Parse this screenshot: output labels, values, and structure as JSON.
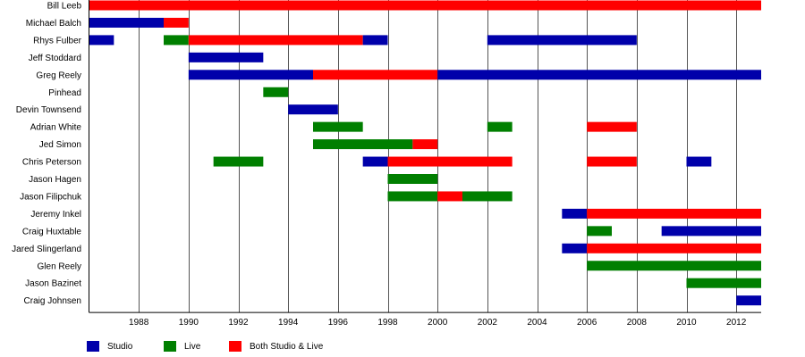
{
  "chart_data": {
    "type": "bar",
    "subtype": "timeline",
    "title": "",
    "xlabel": "",
    "ylabel": "",
    "xlim": [
      1986.0,
      2013.0
    ],
    "x_ticks": [
      1988,
      1990,
      1992,
      1994,
      1996,
      1998,
      2000,
      2002,
      2004,
      2006,
      2008,
      2010,
      2012
    ],
    "grid": "vertical",
    "legend_position": "bottom-left",
    "categories": [
      "Bill Leeb",
      "Michael Balch",
      "Rhys Fulber",
      "Jeff Stoddard",
      "Greg Reely",
      "Pinhead",
      "Devin Townsend",
      "Adrian White",
      "Jed Simon",
      "Chris Peterson",
      "Jason Hagen",
      "Jason Filipchuk",
      "Jeremy Inkel",
      "Craig Huxtable",
      "Jared Slingerland",
      "Glen Reely",
      "Jason Bazinet",
      "Craig Johnsen"
    ],
    "series": [
      {
        "key": "studio",
        "name": "Studio",
        "color": "#0000aa"
      },
      {
        "key": "live",
        "name": "Live",
        "color": "#007f00"
      },
      {
        "key": "both",
        "name": "Both Studio & Live",
        "color": "#ff0000"
      }
    ],
    "bars": [
      {
        "row": 0,
        "series": "both",
        "start": 1986.0,
        "end": 2013.0
      },
      {
        "row": 1,
        "series": "studio",
        "start": 1986.0,
        "end": 1989.0
      },
      {
        "row": 1,
        "series": "both",
        "start": 1989.0,
        "end": 1990.0
      },
      {
        "row": 2,
        "series": "studio",
        "start": 1986.0,
        "end": 1987.0
      },
      {
        "row": 2,
        "series": "live",
        "start": 1989.0,
        "end": 1990.0
      },
      {
        "row": 2,
        "series": "both",
        "start": 1990.0,
        "end": 1997.0
      },
      {
        "row": 2,
        "series": "studio",
        "start": 1997.0,
        "end": 1998.0
      },
      {
        "row": 2,
        "series": "studio",
        "start": 2002.0,
        "end": 2008.0
      },
      {
        "row": 3,
        "series": "studio",
        "start": 1990.0,
        "end": 1993.0
      },
      {
        "row": 4,
        "series": "studio",
        "start": 1990.0,
        "end": 1995.0
      },
      {
        "row": 4,
        "series": "both",
        "start": 1995.0,
        "end": 2000.0
      },
      {
        "row": 4,
        "series": "studio",
        "start": 2000.0,
        "end": 2013.0
      },
      {
        "row": 5,
        "series": "live",
        "start": 1993.0,
        "end": 1994.0
      },
      {
        "row": 6,
        "series": "studio",
        "start": 1994.0,
        "end": 1996.0
      },
      {
        "row": 7,
        "series": "live",
        "start": 1995.0,
        "end": 1997.0
      },
      {
        "row": 7,
        "series": "live",
        "start": 2002.0,
        "end": 2003.0
      },
      {
        "row": 7,
        "series": "both",
        "start": 2006.0,
        "end": 2008.0
      },
      {
        "row": 8,
        "series": "live",
        "start": 1995.0,
        "end": 1999.0
      },
      {
        "row": 8,
        "series": "both",
        "start": 1999.0,
        "end": 2000.0
      },
      {
        "row": 9,
        "series": "live",
        "start": 1991.0,
        "end": 1993.0
      },
      {
        "row": 9,
        "series": "studio",
        "start": 1997.0,
        "end": 1998.0
      },
      {
        "row": 9,
        "series": "both",
        "start": 1998.0,
        "end": 2003.0
      },
      {
        "row": 9,
        "series": "both",
        "start": 2006.0,
        "end": 2008.0
      },
      {
        "row": 9,
        "series": "studio",
        "start": 2010.0,
        "end": 2011.0
      },
      {
        "row": 10,
        "series": "live",
        "start": 1998.0,
        "end": 2000.0
      },
      {
        "row": 11,
        "series": "live",
        "start": 1998.0,
        "end": 2000.0
      },
      {
        "row": 11,
        "series": "both",
        "start": 2000.0,
        "end": 2001.0
      },
      {
        "row": 11,
        "series": "live",
        "start": 2001.0,
        "end": 2003.0
      },
      {
        "row": 12,
        "series": "studio",
        "start": 2005.0,
        "end": 2006.0
      },
      {
        "row": 12,
        "series": "both",
        "start": 2006.0,
        "end": 2013.0
      },
      {
        "row": 13,
        "series": "live",
        "start": 2006.0,
        "end": 2007.0
      },
      {
        "row": 13,
        "series": "studio",
        "start": 2009.0,
        "end": 2013.0
      },
      {
        "row": 14,
        "series": "studio",
        "start": 2005.0,
        "end": 2006.0
      },
      {
        "row": 14,
        "series": "both",
        "start": 2006.0,
        "end": 2013.0
      },
      {
        "row": 15,
        "series": "live",
        "start": 2006.0,
        "end": 2013.0
      },
      {
        "row": 16,
        "series": "live",
        "start": 2010.0,
        "end": 2013.0
      },
      {
        "row": 17,
        "series": "studio",
        "start": 2012.0,
        "end": 2013.0
      }
    ]
  },
  "legend": {
    "studio_label": "Studio",
    "live_label": "Live",
    "both_label": "Both Studio & Live",
    "studio_color": "#0000aa",
    "live_color": "#007f00",
    "both_color": "#ff0000"
  }
}
